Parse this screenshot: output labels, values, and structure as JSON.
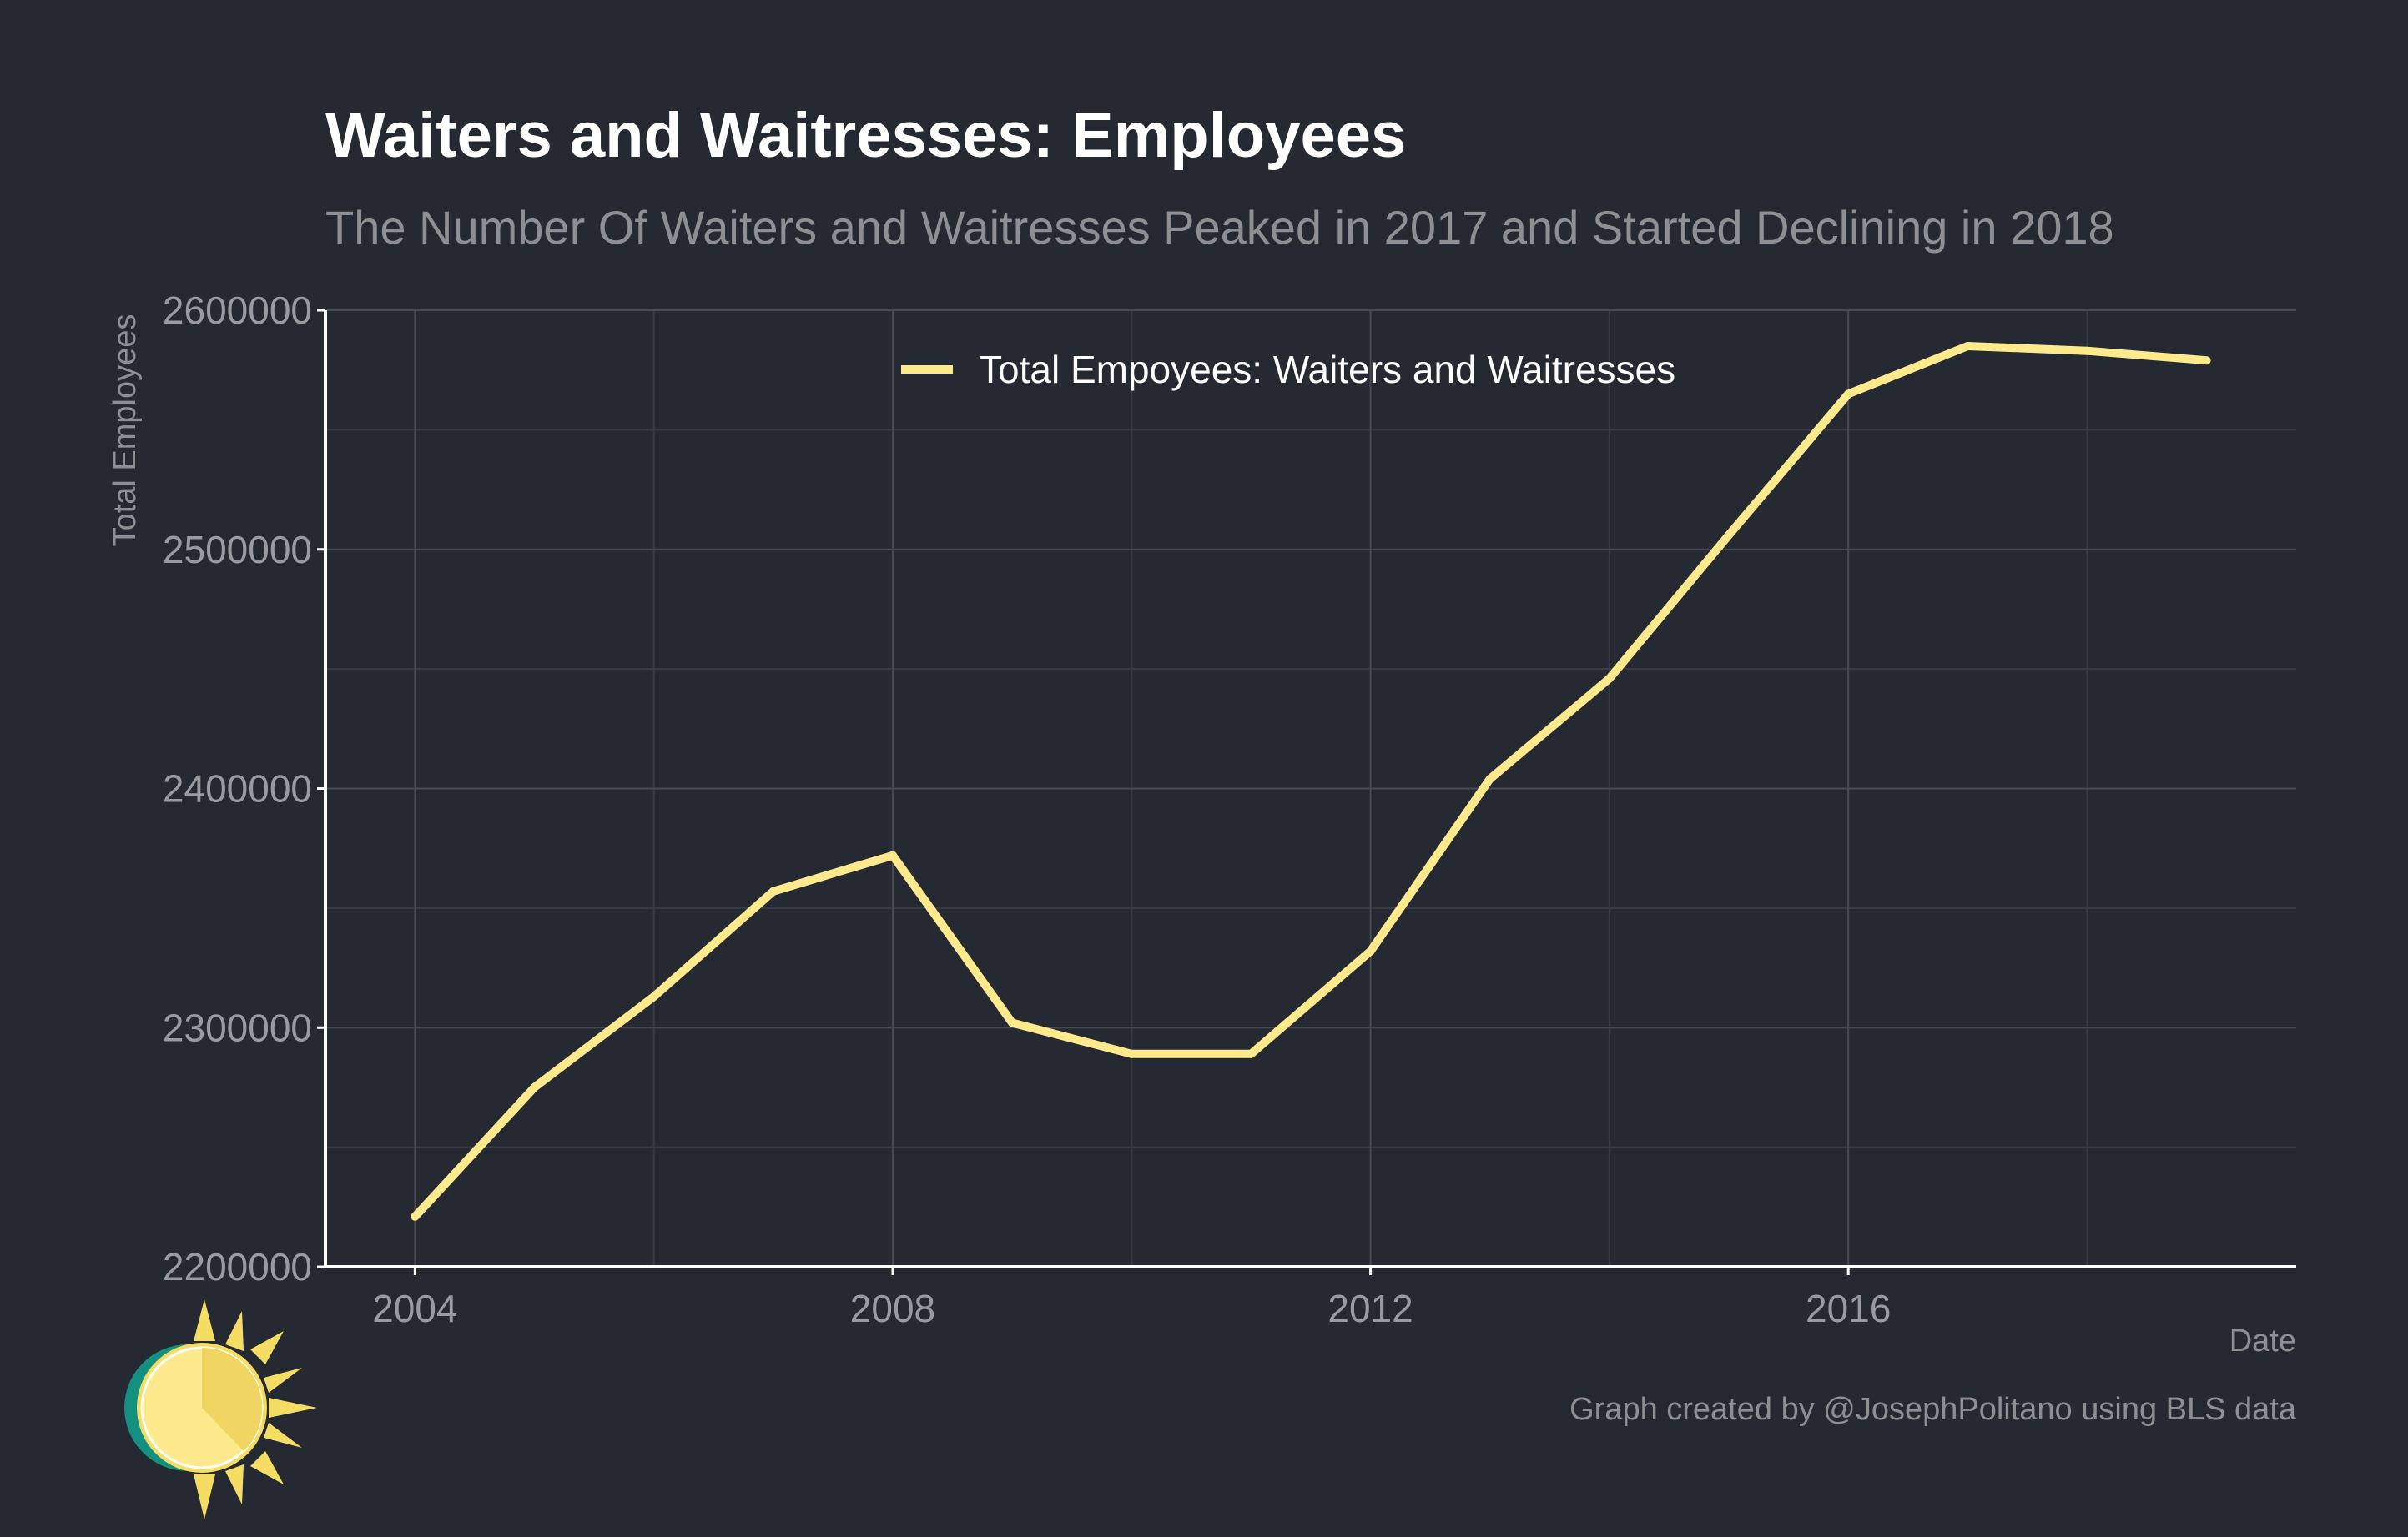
{
  "colors": {
    "background": "#252931",
    "line": "#fee98c",
    "axis": "#ffffff",
    "grid": "#464a52"
  },
  "chart_data": {
    "type": "line",
    "title": "Waiters and Waitresses: Employees",
    "subtitle": "The Number Of Waiters and Waitresses Peaked in 2017 and Started Declining in 2018",
    "xlabel": "Date",
    "ylabel": "Total Employees",
    "caption": "Graph created by @JosephPolitano using BLS data",
    "xlim": [
      2003.25,
      2019.75
    ],
    "ylim": [
      2200000,
      2600000
    ],
    "x_ticks": [
      2004,
      2008,
      2012,
      2016
    ],
    "x_tick_labels": [
      "2004",
      "2008",
      "2012",
      "2016"
    ],
    "y_ticks": [
      2200000,
      2300000,
      2400000,
      2500000,
      2600000
    ],
    "y_tick_labels": [
      "2200000",
      "2300000",
      "2400000",
      "2500000",
      "2600000"
    ],
    "legend": "top-center",
    "grid": true,
    "series": [
      {
        "name": "Total Empoyees: Waiters and Waitresses",
        "x": [
          2004,
          2005,
          2006,
          2007,
          2008,
          2009,
          2010,
          2011,
          2012,
          2013,
          2014,
          2015,
          2016,
          2017,
          2018,
          2019
        ],
        "values": [
          2221000,
          2275000,
          2313000,
          2357000,
          2372000,
          2302000,
          2289000,
          2289000,
          2332000,
          2404000,
          2446000,
          2506000,
          2565000,
          2585000,
          2583000,
          2579000
        ]
      }
    ]
  },
  "logo": {
    "icon": "sun-icon"
  }
}
